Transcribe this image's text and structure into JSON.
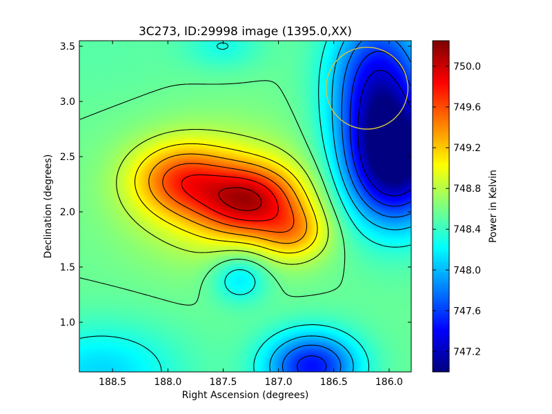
{
  "chart_data": {
    "type": "heatmap",
    "title": "3C273, ID:29998 image (1395.0,XX)",
    "xlabel": "Right Ascension (degrees)",
    "ylabel": "Declination (degrees)",
    "xlim": [
      188.8,
      185.8
    ],
    "ylim": [
      0.55,
      3.55
    ],
    "x_axis_inverted": true,
    "x_ticks": [
      188.5,
      188.0,
      187.5,
      187.0,
      186.5,
      186.0
    ],
    "x_tick_labels": [
      "188.5",
      "188.0",
      "187.5",
      "187.0",
      "186.5",
      "186.0"
    ],
    "y_ticks": [
      1.0,
      1.5,
      2.0,
      2.5,
      3.0,
      3.5
    ],
    "y_tick_labels": [
      "1.0",
      "1.5",
      "2.0",
      "2.5",
      "3.0",
      "3.5"
    ],
    "colormap": "jet",
    "colorbar": {
      "label": "Power in Kelvin",
      "range": [
        747.0,
        750.25
      ],
      "ticks": [
        747.2,
        747.6,
        748.0,
        748.4,
        748.8,
        749.2,
        749.6,
        750.0
      ],
      "tick_labels": [
        "747.2",
        "747.6",
        "748.0",
        "748.4",
        "748.8",
        "749.2",
        "749.6",
        "750.0"
      ]
    },
    "field_features": [
      {
        "kind": "max",
        "ra": 187.25,
        "dec": 2.15,
        "value": 750.15
      },
      {
        "kind": "max",
        "ra": 187.9,
        "dec": 2.3,
        "value": 749.9
      },
      {
        "kind": "min",
        "ra": 186.0,
        "dec": 2.45,
        "value": 747.05
      },
      {
        "kind": "min",
        "ra": 186.7,
        "dec": 0.6,
        "value": 747.4
      },
      {
        "kind": "min",
        "ra": 187.35,
        "dec": 1.4,
        "value": 748.05
      }
    ],
    "overlay_circle": {
      "ra": 186.2,
      "dec": 3.12,
      "radius_deg": 0.37,
      "color": "#d4c840"
    }
  }
}
